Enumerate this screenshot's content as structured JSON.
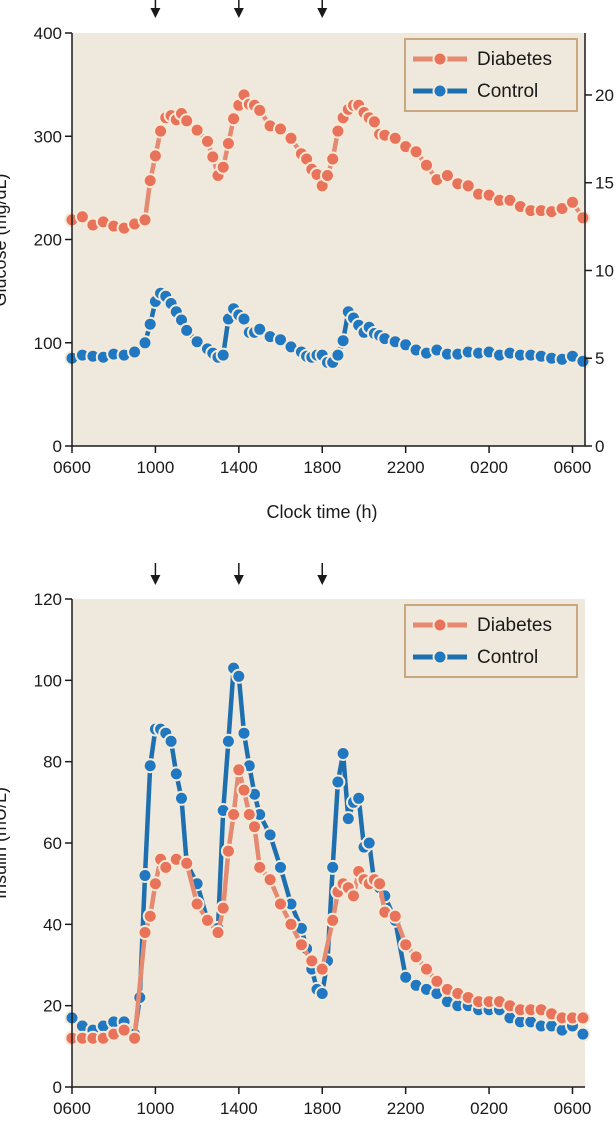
{
  "colors": {
    "plot_bg": "#efe8dc",
    "legend_border": "#c9a77f",
    "diabetes_line": "#e58a70",
    "diabetes_marker": "#e8735a",
    "control_line": "#1d6fb0",
    "control_marker": "#1f78c1",
    "marker_outline": "#f5ead8"
  },
  "chart_data": [
    {
      "type": "line",
      "xlabel": "Clock time (h)",
      "ylabel": "Glucose (mg/dL)",
      "ylim": [
        0,
        400
      ],
      "yticks": [
        0,
        100,
        200,
        300,
        400
      ],
      "xlim": [
        0,
        24.6
      ],
      "x_unit": "hours after 0600",
      "xticks": [
        {
          "x": 0,
          "label": "0600"
        },
        {
          "x": 4,
          "label": "1000"
        },
        {
          "x": 8,
          "label": "1400"
        },
        {
          "x": 12,
          "label": "1800"
        },
        {
          "x": 16,
          "label": "2200"
        },
        {
          "x": 20,
          "label": "0200"
        },
        {
          "x": 24,
          "label": "0600"
        }
      ],
      "meal_arrows_x": [
        4,
        8,
        12
      ],
      "right_axis": {
        "ticks": [
          {
            "y": 0,
            "label": "0"
          },
          {
            "y": 85,
            "label": "5"
          },
          {
            "y": 170,
            "label": "10"
          },
          {
            "y": 255,
            "label": "15"
          },
          {
            "y": 340,
            "label": "20"
          }
        ]
      },
      "legend": {
        "position": "top-right",
        "entries": [
          "Diabetes",
          "Control"
        ]
      },
      "series": [
        {
          "name": "Diabetes",
          "x": [
            0.0,
            0.5,
            1.0,
            1.5,
            2.0,
            2.5,
            3.0,
            3.5,
            3.75,
            4.0,
            4.25,
            4.5,
            4.75,
            5.0,
            5.25,
            5.5,
            6.0,
            6.5,
            6.75,
            7.0,
            7.25,
            7.5,
            7.75,
            8.0,
            8.25,
            8.5,
            8.75,
            9.0,
            9.5,
            10.0,
            10.5,
            11.0,
            11.25,
            11.5,
            11.75,
            12.0,
            12.25,
            12.5,
            12.75,
            13.0,
            13.25,
            13.5,
            13.75,
            14.0,
            14.25,
            14.5,
            14.75,
            15.0,
            15.5,
            16.0,
            16.5,
            17.0,
            17.5,
            18.0,
            18.5,
            19.0,
            19.5,
            20.0,
            20.5,
            21.0,
            21.5,
            22.0,
            22.5,
            23.0,
            23.5,
            24.0,
            24.5
          ],
          "y": [
            219,
            222,
            214,
            217,
            213,
            211,
            215,
            219,
            257,
            281,
            305,
            318,
            320,
            316,
            322,
            315,
            306,
            295,
            280,
            262,
            270,
            293,
            317,
            330,
            340,
            331,
            330,
            325,
            310,
            307,
            298,
            283,
            278,
            268,
            263,
            252,
            262,
            278,
            305,
            318,
            326,
            330,
            330,
            323,
            318,
            314,
            302,
            301,
            298,
            290,
            285,
            272,
            258,
            262,
            254,
            252,
            244,
            243,
            238,
            238,
            232,
            228,
            228,
            227,
            230,
            236,
            221
          ]
        },
        {
          "name": "Control",
          "x": [
            0.0,
            0.5,
            1.0,
            1.5,
            2.0,
            2.5,
            3.0,
            3.5,
            3.75,
            4.0,
            4.25,
            4.5,
            4.75,
            5.0,
            5.25,
            5.5,
            6.0,
            6.5,
            6.75,
            7.0,
            7.25,
            7.5,
            7.75,
            8.0,
            8.25,
            8.5,
            8.75,
            9.0,
            9.5,
            10.0,
            10.5,
            11.0,
            11.25,
            11.5,
            11.75,
            12.0,
            12.25,
            12.5,
            12.75,
            13.0,
            13.25,
            13.5,
            13.75,
            14.0,
            14.25,
            14.5,
            14.75,
            15.0,
            15.5,
            16.0,
            16.5,
            17.0,
            17.5,
            18.0,
            18.5,
            19.0,
            19.5,
            20.0,
            20.5,
            21.0,
            21.5,
            22.0,
            22.5,
            23.0,
            23.5,
            24.0,
            24.5
          ],
          "y": [
            85,
            88,
            87,
            86,
            89,
            88,
            91,
            100,
            118,
            140,
            148,
            145,
            138,
            130,
            122,
            112,
            101,
            94,
            90,
            86,
            88,
            123,
            133,
            127,
            123,
            110,
            110,
            113,
            106,
            103,
            96,
            91,
            87,
            86,
            88,
            88,
            81,
            81,
            88,
            102,
            130,
            124,
            117,
            110,
            115,
            109,
            107,
            104,
            101,
            98,
            93,
            90,
            93,
            89,
            89,
            91,
            90,
            91,
            88,
            90,
            88,
            88,
            87,
            85,
            84,
            87,
            82
          ]
        }
      ]
    },
    {
      "type": "line",
      "xlabel": "",
      "ylabel": "Insulin (mU/L)",
      "ylim": [
        0,
        120
      ],
      "yticks": [
        0,
        20,
        40,
        60,
        80,
        100,
        120
      ],
      "xlim": [
        0,
        24.6
      ],
      "x_unit": "hours after 0600",
      "xticks": [
        {
          "x": 0,
          "label": "0600"
        },
        {
          "x": 4,
          "label": "1000"
        },
        {
          "x": 8,
          "label": "1400"
        },
        {
          "x": 12,
          "label": "1800"
        },
        {
          "x": 16,
          "label": "2200"
        },
        {
          "x": 20,
          "label": "0200"
        },
        {
          "x": 24,
          "label": "0600"
        }
      ],
      "meal_arrows_x": [
        4,
        8,
        12
      ],
      "legend": {
        "position": "top-right",
        "entries": [
          "Diabetes",
          "Control"
        ]
      },
      "series": [
        {
          "name": "Control",
          "x": [
            0.0,
            0.5,
            1.0,
            1.5,
            2.0,
            2.5,
            3.0,
            3.25,
            3.5,
            3.75,
            4.0,
            4.25,
            4.5,
            4.75,
            5.0,
            5.25,
            5.5,
            6.0,
            6.5,
            7.0,
            7.25,
            7.5,
            7.75,
            8.0,
            8.25,
            8.5,
            8.75,
            9.0,
            9.5,
            10.0,
            10.5,
            11.0,
            11.25,
            11.5,
            11.75,
            12.0,
            12.25,
            12.5,
            12.75,
            13.0,
            13.25,
            13.5,
            13.75,
            14.0,
            14.25,
            14.5,
            14.75,
            15.0,
            15.5,
            16.0,
            16.5,
            17.0,
            17.5,
            18.0,
            18.5,
            19.0,
            19.5,
            20.0,
            20.5,
            21.0,
            21.5,
            22.0,
            22.5,
            23.0,
            23.5,
            24.0,
            24.5
          ],
          "y": [
            17,
            15,
            14,
            15,
            16,
            16,
            13,
            22,
            52,
            79,
            88,
            88,
            87,
            85,
            77,
            71,
            55,
            50,
            41,
            39,
            68,
            85,
            103,
            101,
            87,
            79,
            72,
            67,
            62,
            54,
            45,
            39,
            34,
            29,
            24,
            23,
            31,
            54,
            75,
            82,
            66,
            70,
            71,
            59,
            60,
            50,
            49,
            47,
            41,
            27,
            25,
            24,
            23,
            21,
            20,
            20,
            19,
            19,
            19,
            17,
            16,
            16,
            15,
            15,
            14,
            15,
            13
          ]
        },
        {
          "name": "Diabetes",
          "x": [
            0.0,
            0.5,
            1.0,
            1.5,
            2.0,
            2.5,
            3.0,
            3.5,
            3.75,
            4.0,
            4.25,
            4.5,
            5.0,
            5.5,
            6.0,
            6.5,
            7.0,
            7.25,
            7.5,
            7.75,
            8.0,
            8.25,
            8.5,
            8.75,
            9.0,
            9.5,
            10.0,
            10.5,
            11.0,
            11.5,
            12.0,
            12.5,
            12.75,
            13.0,
            13.25,
            13.5,
            13.75,
            14.0,
            14.25,
            14.5,
            14.75,
            15.0,
            15.5,
            16.0,
            16.5,
            17.0,
            17.5,
            18.0,
            18.5,
            19.0,
            19.5,
            20.0,
            20.5,
            21.0,
            21.5,
            22.0,
            22.5,
            23.0,
            23.5,
            24.0,
            24.5
          ],
          "y": [
            12,
            12,
            12,
            12,
            13,
            14,
            12,
            38,
            42,
            50,
            56,
            54,
            56,
            55,
            45,
            41,
            38,
            44,
            58,
            67,
            78,
            73,
            67,
            64,
            54,
            51,
            45,
            40,
            35,
            31,
            29,
            41,
            48,
            50,
            49,
            47,
            53,
            51,
            50,
            51,
            50,
            43,
            42,
            35,
            32,
            29,
            26,
            24,
            23,
            22,
            21,
            21,
            21,
            20,
            19,
            19,
            19,
            18,
            17,
            17,
            17
          ]
        }
      ]
    }
  ]
}
